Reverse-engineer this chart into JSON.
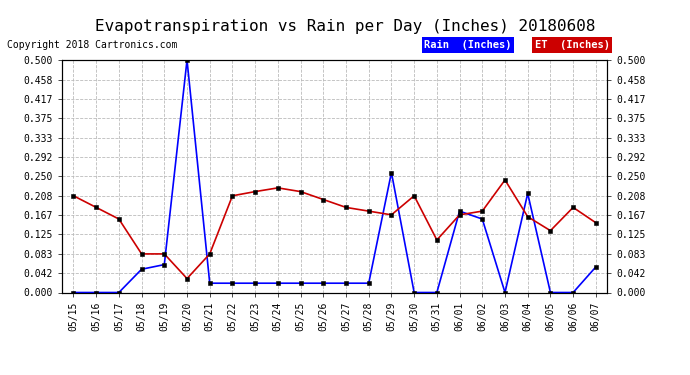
{
  "title": "Evapotranspiration vs Rain per Day (Inches) 20180608",
  "copyright": "Copyright 2018 Cartronics.com",
  "x_labels": [
    "05/15",
    "05/16",
    "05/17",
    "05/18",
    "05/19",
    "05/20",
    "05/21",
    "05/22",
    "05/23",
    "05/24",
    "05/25",
    "05/26",
    "05/27",
    "05/28",
    "05/29",
    "05/30",
    "05/31",
    "06/01",
    "06/02",
    "06/03",
    "06/04",
    "06/05",
    "06/06",
    "06/07"
  ],
  "rain_inches": [
    0.0,
    0.0,
    0.0,
    0.05,
    0.06,
    0.5,
    0.02,
    0.02,
    0.02,
    0.02,
    0.02,
    0.02,
    0.02,
    0.02,
    0.258,
    0.0,
    0.0,
    0.175,
    0.158,
    0.0,
    0.213,
    0.0,
    0.0,
    0.055
  ],
  "et_inches": [
    0.208,
    0.183,
    0.158,
    0.083,
    0.083,
    0.03,
    0.083,
    0.208,
    0.217,
    0.225,
    0.217,
    0.2,
    0.183,
    0.175,
    0.167,
    0.208,
    0.113,
    0.167,
    0.175,
    0.242,
    0.163,
    0.133,
    0.183,
    0.15
  ],
  "rain_color": "#0000ff",
  "et_color": "#cc0000",
  "background_color": "#ffffff",
  "grid_color": "#bbbbbb",
  "ylim": [
    0.0,
    0.5
  ],
  "yticks": [
    0.0,
    0.042,
    0.083,
    0.125,
    0.167,
    0.208,
    0.25,
    0.292,
    0.333,
    0.375,
    0.417,
    0.458,
    0.5
  ],
  "title_fontsize": 11.5,
  "copyright_fontsize": 7,
  "tick_fontsize": 7,
  "legend_rain_text": "Rain  (Inches)",
  "legend_et_text": "ET  (Inches)",
  "legend_rain_bg": "#0000ff",
  "legend_et_bg": "#cc0000"
}
